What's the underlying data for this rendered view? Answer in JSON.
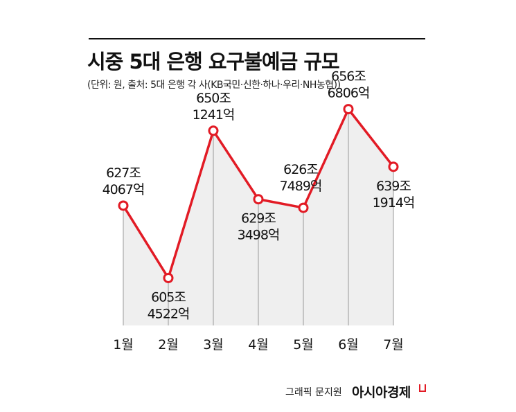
{
  "header": {
    "title": "시중 5대 은행 요구불예금 규모",
    "subtitle": "(단위: 원, 출처: 5대 은행 각 사(KB국민·신한·하나·우리·NH농협))"
  },
  "footer": {
    "credit": "그래픽 문지원",
    "brand": "아시아경제"
  },
  "colors": {
    "line": "#e21b25",
    "area": "#efefef",
    "text": "#111111"
  },
  "chart_data": {
    "type": "area",
    "title": "시중 5대 은행 요구불예금 규모",
    "categories": [
      "1월",
      "2월",
      "3월",
      "4월",
      "5월",
      "6월",
      "7월"
    ],
    "series": [
      {
        "values": [
          627.4067,
          605.4522,
          650.1241,
          629.3498,
          626.7489,
          656.6806,
          639.1914
        ]
      }
    ],
    "data_labels": [
      [
        "627조",
        "4067억"
      ],
      [
        "605조",
        "4522억"
      ],
      [
        "650조",
        "1241억"
      ],
      [
        "629조",
        "3498억"
      ],
      [
        "626조",
        "7489억"
      ],
      [
        "656조",
        "6806억"
      ],
      [
        "639조",
        "1914억"
      ]
    ],
    "ylim": [
      590,
      665
    ],
    "grid": false,
    "legend": "none"
  }
}
